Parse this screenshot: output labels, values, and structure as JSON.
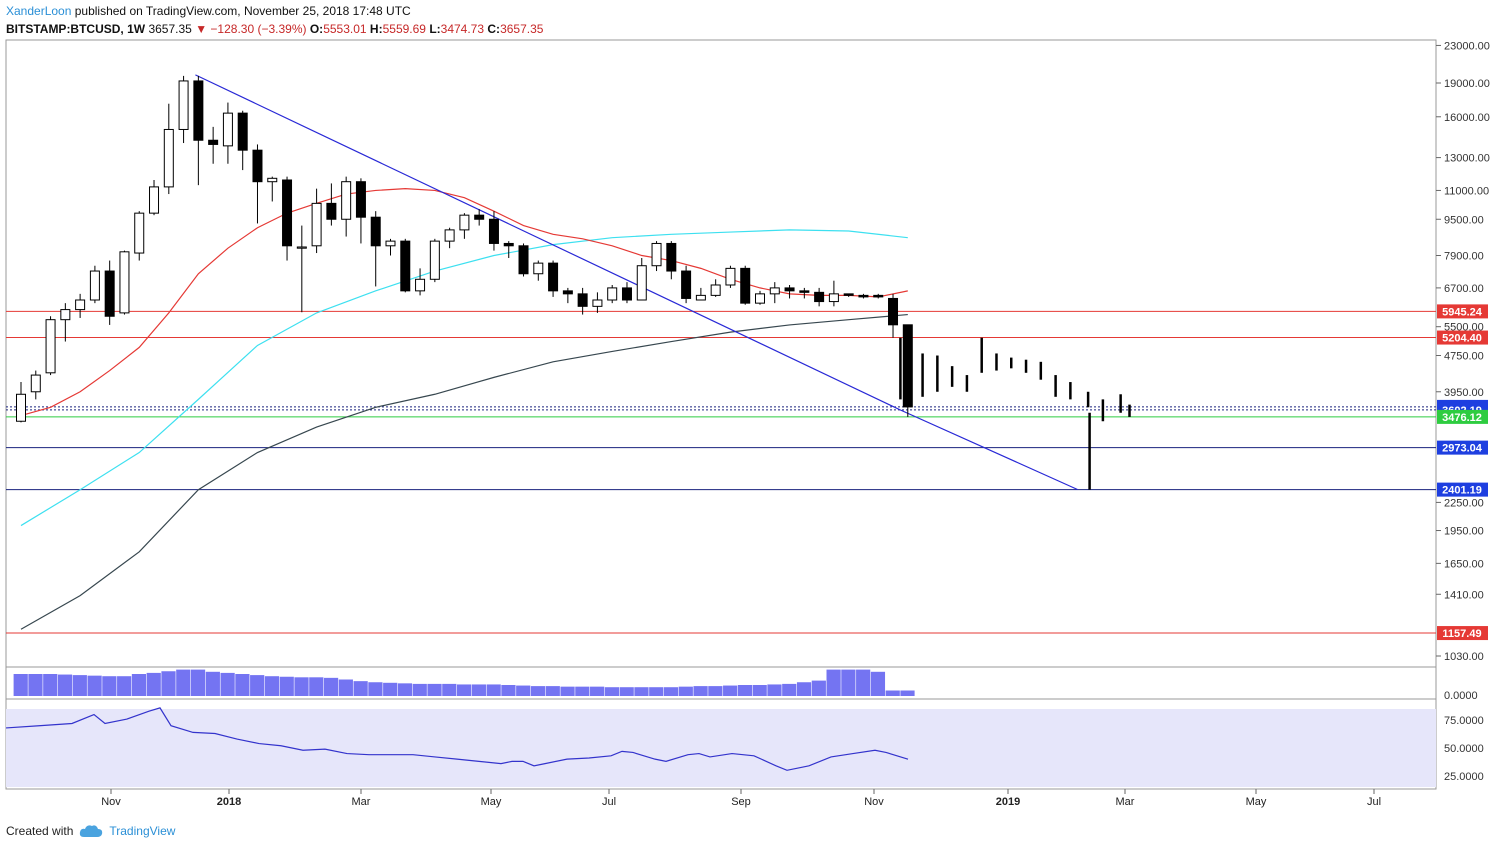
{
  "header": {
    "author": "XanderLoon",
    "published": "published on TradingView.com, November 25, 2018 17:48 UTC",
    "symbol": "BITSTAMP:BTCUSD, 1W",
    "last": "3657.35",
    "arrow": "▼",
    "change": "−128.30 (−3.39%)",
    "o_label": "O:",
    "o_value": "5553.01",
    "h_label": "H:",
    "h_value": "5559.69",
    "l_label": "L:",
    "l_value": "3474.73",
    "c_label": "C:",
    "c_value": "3657.35"
  },
  "footer": {
    "created_with": "Created with",
    "brand": "TradingView",
    "brand_icon": "tradingview-cloud-icon"
  },
  "chart_data": {
    "type": "candlestick",
    "y_scale": "log",
    "price_ticks": [
      "23000.00",
      "19000.00",
      "16000.00",
      "13000.00",
      "11000.00",
      "9500.00",
      "7900.00",
      "6700.00",
      "5500.00",
      "4750.00",
      "3950.00",
      "2250.00",
      "1950.00",
      "1650.00",
      "1410.00",
      "1030.00"
    ],
    "x_ticks": [
      "Nov",
      "2018",
      "Mar",
      "May",
      "Jul",
      "Sep",
      "Nov",
      "2019",
      "Mar",
      "May",
      "Jul"
    ],
    "x_ticks_bold": [
      "2018",
      "2019"
    ],
    "horizontal_lines": [
      {
        "value": 5945.24,
        "label": "5945.24",
        "color": "#e53935"
      },
      {
        "value": 5204.4,
        "label": "5204.40",
        "color": "#e53935"
      },
      {
        "value": 3657.35,
        "label": "3657.35",
        "color": "#1e3fe0"
      },
      {
        "value": 3602.19,
        "label": "3602.19",
        "color": "#1e3fe0"
      },
      {
        "value": 3476.12,
        "label": "3476.12",
        "color": "#2ecc40"
      },
      {
        "value": 2973.04,
        "label": "2973.04",
        "color": "#1e3fe0"
      },
      {
        "value": 2401.19,
        "label": "2401.19",
        "color": "#1e3fe0"
      },
      {
        "value": 1157.49,
        "label": "1157.49",
        "color": "#e53935"
      }
    ],
    "candles": [
      [
        3400,
        3900,
        3380,
        4150
      ],
      [
        3950,
        4300,
        3800,
        4400
      ],
      [
        4350,
        5700,
        4300,
        5800
      ],
      [
        5700,
        6000,
        5100,
        6200
      ],
      [
        6000,
        6300,
        5750,
        6500
      ],
      [
        6300,
        7300,
        6200,
        7500
      ],
      [
        7300,
        5800,
        5550,
        7700
      ],
      [
        5900,
        8050,
        5850,
        8100
      ],
      [
        8000,
        9800,
        7700,
        9900
      ],
      [
        9800,
        11200,
        9700,
        11600
      ],
      [
        11200,
        15000,
        10800,
        17100
      ],
      [
        15000,
        19200,
        14000,
        19700
      ],
      [
        19200,
        14200,
        11300,
        19700
      ],
      [
        14200,
        13900,
        12600,
        15200
      ],
      [
        13800,
        16300,
        12600,
        17200
      ],
      [
        16300,
        13500,
        12200,
        16500
      ],
      [
        13500,
        11500,
        9300,
        13900
      ],
      [
        11500,
        11700,
        10400,
        11800
      ],
      [
        11600,
        8300,
        7700,
        11800
      ],
      [
        8200,
        8250,
        5920,
        9200
      ],
      [
        8300,
        10300,
        8000,
        11100
      ],
      [
        10300,
        9500,
        9200,
        11400
      ],
      [
        9500,
        11500,
        8700,
        11800
      ],
      [
        11500,
        9600,
        8400,
        11700
      ],
      [
        9600,
        8300,
        6750,
        9900
      ],
      [
        8300,
        8500,
        7900,
        8600
      ],
      [
        8500,
        6600,
        6550,
        8600
      ],
      [
        6600,
        7000,
        6450,
        7400
      ],
      [
        7000,
        8500,
        6900,
        8600
      ],
      [
        8500,
        9000,
        8200,
        9100
      ],
      [
        9000,
        9700,
        8600,
        9800
      ],
      [
        9700,
        9500,
        9200,
        10000
      ],
      [
        9500,
        8400,
        8100,
        9900
      ],
      [
        8400,
        8300,
        7800,
        8500
      ],
      [
        8300,
        7200,
        7100,
        8400
      ],
      [
        7200,
        7600,
        6950,
        7700
      ],
      [
        7600,
        6600,
        6400,
        7700
      ],
      [
        6600,
        6500,
        6200,
        6700
      ],
      [
        6500,
        6100,
        5850,
        6700
      ],
      [
        6100,
        6300,
        5900,
        6550
      ],
      [
        6300,
        6700,
        6200,
        6800
      ],
      [
        6700,
        6300,
        6200,
        6900
      ],
      [
        6300,
        7500,
        6300,
        7800
      ],
      [
        7500,
        8400,
        7300,
        8500
      ],
      [
        8400,
        7300,
        7000,
        8500
      ],
      [
        7300,
        6350,
        6200,
        7500
      ],
      [
        6300,
        6450,
        6300,
        6700
      ],
      [
        6450,
        6800,
        6400,
        7000
      ],
      [
        6800,
        7400,
        6700,
        7500
      ],
      [
        7400,
        6200,
        6150,
        7500
      ],
      [
        6200,
        6500,
        6150,
        6600
      ],
      [
        6500,
        6700,
        6200,
        6900
      ],
      [
        6700,
        6600,
        6350,
        6800
      ],
      [
        6600,
        6550,
        6350,
        6700
      ],
      [
        6550,
        6250,
        6100,
        6700
      ],
      [
        6250,
        6500,
        6100,
        6950
      ],
      [
        6500,
        6450,
        6400,
        6500
      ],
      [
        6450,
        6400,
        6350,
        6500
      ],
      [
        6450,
        6400,
        6350,
        6500
      ],
      [
        6350,
        5553,
        5200,
        6500
      ],
      [
        5553,
        3657.35,
        3474.73,
        5559.69
      ]
    ],
    "ma_red": [
      [
        0,
        3500
      ],
      [
        2,
        3650
      ],
      [
        4,
        3950
      ],
      [
        6,
        4400
      ],
      [
        8,
        4950
      ],
      [
        10,
        5900
      ],
      [
        12,
        7200
      ],
      [
        14,
        8200
      ],
      [
        16,
        9100
      ],
      [
        18,
        9800
      ],
      [
        20,
        10300
      ],
      [
        22,
        10800
      ],
      [
        24,
        11000
      ],
      [
        26,
        11100
      ],
      [
        28,
        11000
      ],
      [
        30,
        10600
      ],
      [
        32,
        9900
      ],
      [
        34,
        9200
      ],
      [
        36,
        8800
      ],
      [
        38,
        8600
      ],
      [
        40,
        8300
      ],
      [
        42,
        7900
      ],
      [
        44,
        7700
      ],
      [
        46,
        7400
      ],
      [
        48,
        7000
      ],
      [
        50,
        6700
      ],
      [
        52,
        6500
      ],
      [
        54,
        6450
      ],
      [
        56,
        6450
      ],
      [
        58,
        6400
      ],
      [
        60,
        6600
      ]
    ],
    "ma_cyan": [
      [
        0,
        2000
      ],
      [
        4,
        2400
      ],
      [
        8,
        2900
      ],
      [
        12,
        3800
      ],
      [
        16,
        5000
      ],
      [
        20,
        5900
      ],
      [
        24,
        6600
      ],
      [
        28,
        7300
      ],
      [
        32,
        7900
      ],
      [
        36,
        8350
      ],
      [
        40,
        8650
      ],
      [
        44,
        8800
      ],
      [
        48,
        8900
      ],
      [
        52,
        9000
      ],
      [
        56,
        8950
      ],
      [
        60,
        8650
      ]
    ],
    "ma_dark": [
      [
        0,
        1180
      ],
      [
        4,
        1400
      ],
      [
        8,
        1750
      ],
      [
        12,
        2400
      ],
      [
        16,
        2900
      ],
      [
        20,
        3300
      ],
      [
        24,
        3650
      ],
      [
        28,
        3900
      ],
      [
        32,
        4250
      ],
      [
        36,
        4600
      ],
      [
        40,
        4850
      ],
      [
        44,
        5100
      ],
      [
        48,
        5350
      ],
      [
        52,
        5550
      ],
      [
        56,
        5700
      ],
      [
        60,
        5850
      ]
    ],
    "trendline": [
      [
        11.8,
        19800
      ],
      [
        59.5,
        3600
      ],
      [
        71.5,
        2401.19
      ]
    ],
    "projection": [
      [
        59.5,
        3800,
        5200
      ],
      [
        61,
        3850,
        4800
      ],
      [
        62,
        3950,
        4750
      ],
      [
        63,
        4050,
        4500
      ],
      [
        64,
        3950,
        4300
      ],
      [
        65,
        4350,
        5200
      ],
      [
        66,
        4400,
        4800
      ],
      [
        67,
        4450,
        4700
      ],
      [
        68,
        4350,
        4650
      ],
      [
        69,
        4200,
        4600
      ],
      [
        70,
        3850,
        4300
      ],
      [
        71,
        3800,
        4150
      ],
      [
        72.2,
        3650,
        3950
      ],
      [
        73.2,
        3400,
        3800
      ],
      [
        74.4,
        3550,
        3900
      ],
      [
        75,
        3476,
        3700
      ],
      [
        72.3,
        2401,
        3550
      ]
    ],
    "volume": [
      40,
      40,
      40,
      39,
      38,
      37,
      36,
      36,
      40,
      42,
      45,
      48,
      48,
      44,
      42,
      40,
      38,
      36,
      35,
      34,
      34,
      33,
      30,
      27,
      25,
      24,
      23,
      22,
      22,
      22,
      21,
      21,
      21,
      20,
      19,
      18,
      18,
      17,
      17,
      17,
      16,
      16,
      16,
      16,
      16,
      17,
      18,
      18,
      19,
      20,
      20,
      21,
      22,
      25,
      28,
      48,
      48,
      48,
      44,
      10,
      10
    ],
    "rsi": [
      [
        0,
        68
      ],
      [
        3,
        70
      ],
      [
        6,
        72
      ],
      [
        8,
        80
      ],
      [
        9,
        72
      ],
      [
        11,
        76
      ],
      [
        13,
        83
      ],
      [
        14,
        86
      ],
      [
        15,
        70
      ],
      [
        17,
        64
      ],
      [
        19,
        63
      ],
      [
        21,
        58
      ],
      [
        23,
        54
      ],
      [
        25,
        52
      ],
      [
        27,
        48
      ],
      [
        29,
        49
      ],
      [
        31,
        45
      ],
      [
        33,
        44
      ],
      [
        35,
        44
      ],
      [
        37,
        44
      ],
      [
        39,
        42
      ],
      [
        41,
        40
      ],
      [
        43,
        38
      ],
      [
        45,
        36
      ],
      [
        46,
        38
      ],
      [
        47,
        38
      ],
      [
        48,
        34
      ],
      [
        49,
        36
      ],
      [
        51,
        40
      ],
      [
        53,
        41
      ],
      [
        55,
        43
      ],
      [
        56,
        47
      ],
      [
        57,
        46
      ],
      [
        59,
        40
      ],
      [
        60,
        38
      ],
      [
        62,
        44
      ],
      [
        63,
        45
      ],
      [
        64,
        42
      ],
      [
        66,
        45
      ],
      [
        68,
        43
      ],
      [
        70,
        34
      ],
      [
        71,
        30
      ],
      [
        72,
        32
      ],
      [
        73,
        34
      ],
      [
        75,
        42
      ],
      [
        77,
        45
      ],
      [
        79,
        48
      ],
      [
        80,
        46
      ],
      [
        82,
        40
      ]
    ],
    "rsi_ticks": [
      "75.0000",
      "50.0000",
      "25.0000"
    ],
    "volume_tick": "0.0000"
  }
}
